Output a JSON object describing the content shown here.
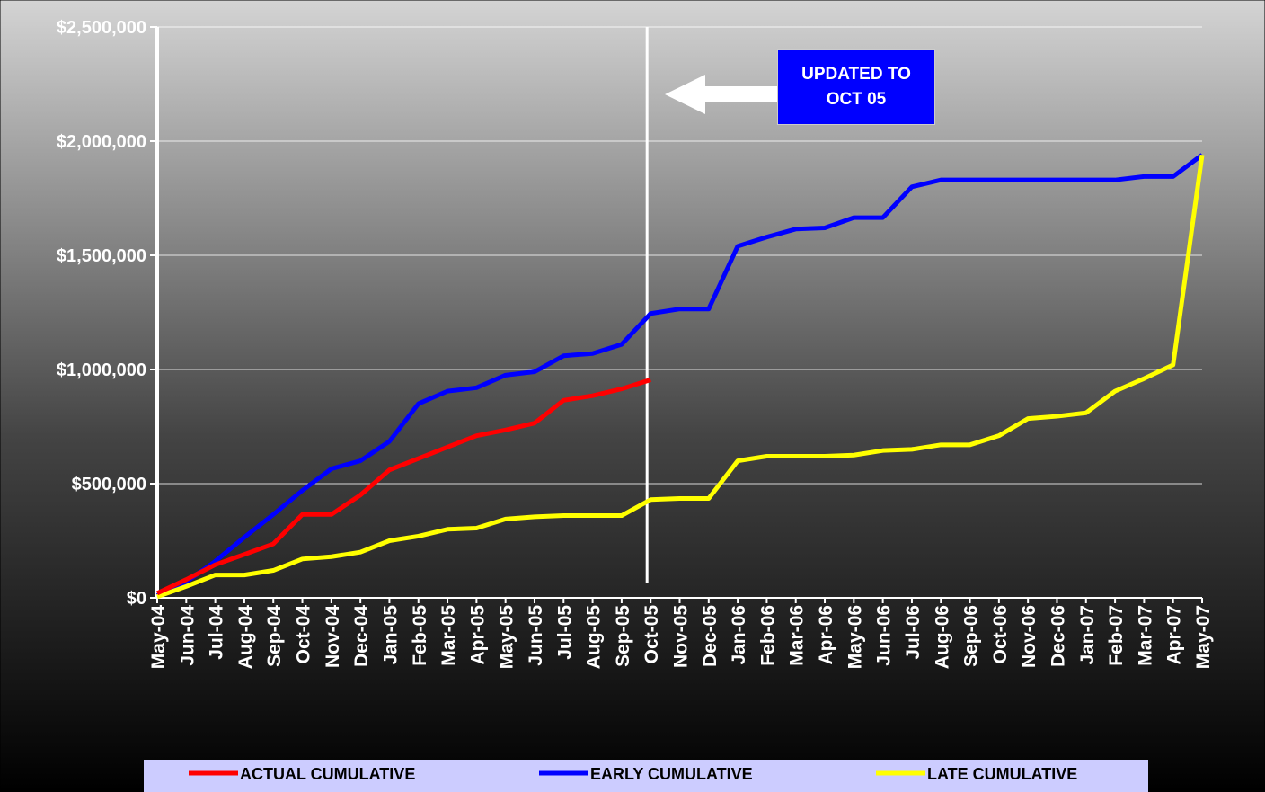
{
  "chart_data": {
    "type": "line",
    "categories": [
      "May-04",
      "Jun-04",
      "Jul-04",
      "Aug-04",
      "Sep-04",
      "Oct-04",
      "Nov-04",
      "Dec-04",
      "Jan-05",
      "Feb-05",
      "Mar-05",
      "Apr-05",
      "May-05",
      "Jun-05",
      "Jul-05",
      "Aug-05",
      "Sep-05",
      "Oct-05",
      "Nov-05",
      "Dec-05",
      "Jan-06",
      "Feb-06",
      "Mar-06",
      "Apr-06",
      "May-06",
      "Jun-06",
      "Jul-06",
      "Aug-06",
      "Sep-06",
      "Oct-06",
      "Nov-06",
      "Dec-06",
      "Jan-07",
      "Feb-07",
      "Mar-07",
      "Apr-07",
      "May-07"
    ],
    "series": [
      {
        "name": "ACTUAL CUMULATIVE",
        "color": "#ff0000",
        "values": [
          20000,
          80000,
          145000,
          190000,
          236000,
          365000,
          365000,
          450000,
          560000,
          610000,
          660000,
          710000,
          735000,
          765000,
          865000,
          885000,
          915000,
          955000,
          null,
          null,
          null,
          null,
          null,
          null,
          null,
          null,
          null,
          null,
          null,
          null,
          null,
          null,
          null,
          null,
          null,
          null,
          null
        ]
      },
      {
        "name": "EARLY CUMULATIVE",
        "color": "#0000ff",
        "values": [
          10000,
          70000,
          160000,
          265000,
          365000,
          470000,
          565000,
          600000,
          685000,
          850000,
          905000,
          920000,
          975000,
          990000,
          1060000,
          1070000,
          1110000,
          1245000,
          1265000,
          1265000,
          1540000,
          1580000,
          1615000,
          1620000,
          1665000,
          1665000,
          1800000,
          1830000,
          1830000,
          1830000,
          1830000,
          1830000,
          1830000,
          1830000,
          1845000,
          1845000,
          1940000
        ]
      },
      {
        "name": "LATE CUMULATIVE",
        "color": "#ffff00",
        "values": [
          5000,
          50000,
          100000,
          100000,
          120000,
          170000,
          180000,
          200000,
          250000,
          270000,
          300000,
          305000,
          345000,
          355000,
          360000,
          360000,
          360000,
          430000,
          435000,
          435000,
          600000,
          620000,
          620000,
          620000,
          625000,
          645000,
          650000,
          670000,
          670000,
          710000,
          785000,
          795000,
          810000,
          905000,
          960000,
          1020000,
          1940000
        ]
      }
    ],
    "ylim": [
      0,
      2500000
    ],
    "yticks": [
      {
        "value": 0,
        "label": "$0"
      },
      {
        "value": 500000,
        "label": "$500,000"
      },
      {
        "value": 1000000,
        "label": "$1,000,000"
      },
      {
        "value": 1500000,
        "label": "$1,500,000"
      },
      {
        "value": 2000000,
        "label": "$2,000,000"
      },
      {
        "value": 2500000,
        "label": "$2,500,000"
      }
    ],
    "grid": true,
    "annotation": "UPDATED TO OCT 05",
    "marker_category": "Oct-05",
    "legend": "bottom"
  }
}
